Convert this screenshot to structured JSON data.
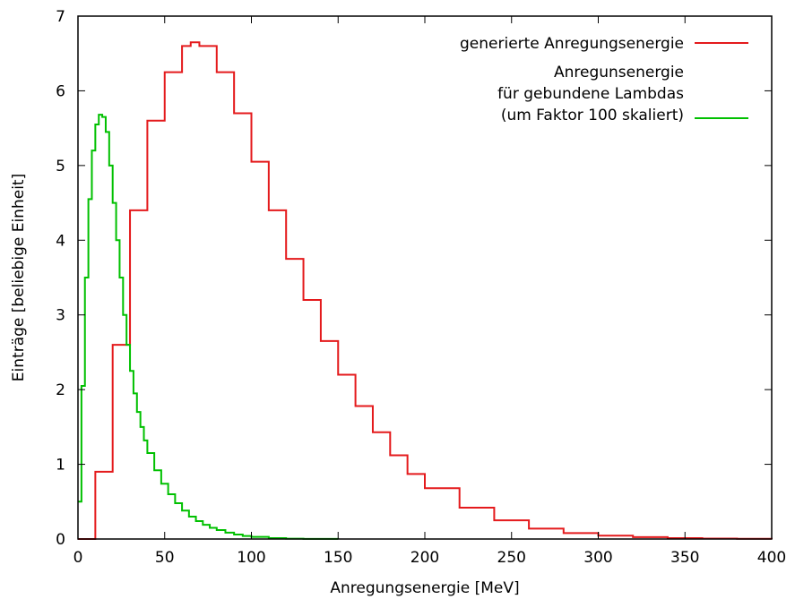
{
  "chart_data": {
    "type": "line",
    "title": "",
    "xlabel": "Anregungsenergie [MeV]",
    "ylabel": "Einträge [beliebige Einheit]",
    "xlim": [
      0,
      400
    ],
    "ylim": [
      0,
      7
    ],
    "x_ticks": [
      0,
      50,
      100,
      150,
      200,
      250,
      300,
      350,
      400
    ],
    "y_ticks": [
      0,
      1,
      2,
      3,
      4,
      5,
      6,
      7
    ],
    "grid": false,
    "legend_position": "top-right",
    "step": true,
    "series": [
      {
        "name": "generierte Anregungsenergie",
        "color": "#e41a1c",
        "x": [
          0,
          10,
          20,
          30,
          40,
          50,
          60,
          65,
          70,
          80,
          90,
          100,
          110,
          120,
          130,
          140,
          150,
          160,
          170,
          180,
          190,
          200,
          220,
          240,
          260,
          280,
          300,
          320,
          340,
          360,
          380,
          400
        ],
        "values": [
          0.0,
          0.9,
          2.6,
          4.4,
          5.6,
          6.25,
          6.6,
          6.65,
          6.6,
          6.25,
          5.7,
          5.05,
          4.4,
          3.75,
          3.2,
          2.65,
          2.2,
          1.78,
          1.43,
          1.12,
          0.87,
          0.68,
          0.42,
          0.25,
          0.14,
          0.08,
          0.045,
          0.025,
          0.012,
          0.006,
          0.003,
          0.0
        ]
      },
      {
        "name": "Anregunsenergie für gebundene Lambdas (um Faktor 100 skaliert)",
        "color": "#00c000",
        "x": [
          0,
          2,
          4,
          6,
          8,
          10,
          12,
          14,
          16,
          18,
          20,
          22,
          24,
          26,
          28,
          30,
          32,
          34,
          36,
          38,
          40,
          44,
          48,
          52,
          56,
          60,
          64,
          68,
          72,
          76,
          80,
          85,
          90,
          95,
          100,
          110,
          120,
          130,
          140,
          150
        ],
        "values": [
          0.5,
          2.05,
          3.5,
          4.55,
          5.2,
          5.55,
          5.68,
          5.65,
          5.45,
          5.0,
          4.5,
          4.0,
          3.5,
          3.0,
          2.6,
          2.25,
          1.95,
          1.7,
          1.5,
          1.32,
          1.15,
          0.92,
          0.74,
          0.6,
          0.48,
          0.38,
          0.3,
          0.24,
          0.19,
          0.15,
          0.12,
          0.085,
          0.06,
          0.04,
          0.028,
          0.012,
          0.005,
          0.002,
          0.001,
          0.0
        ]
      }
    ]
  }
}
